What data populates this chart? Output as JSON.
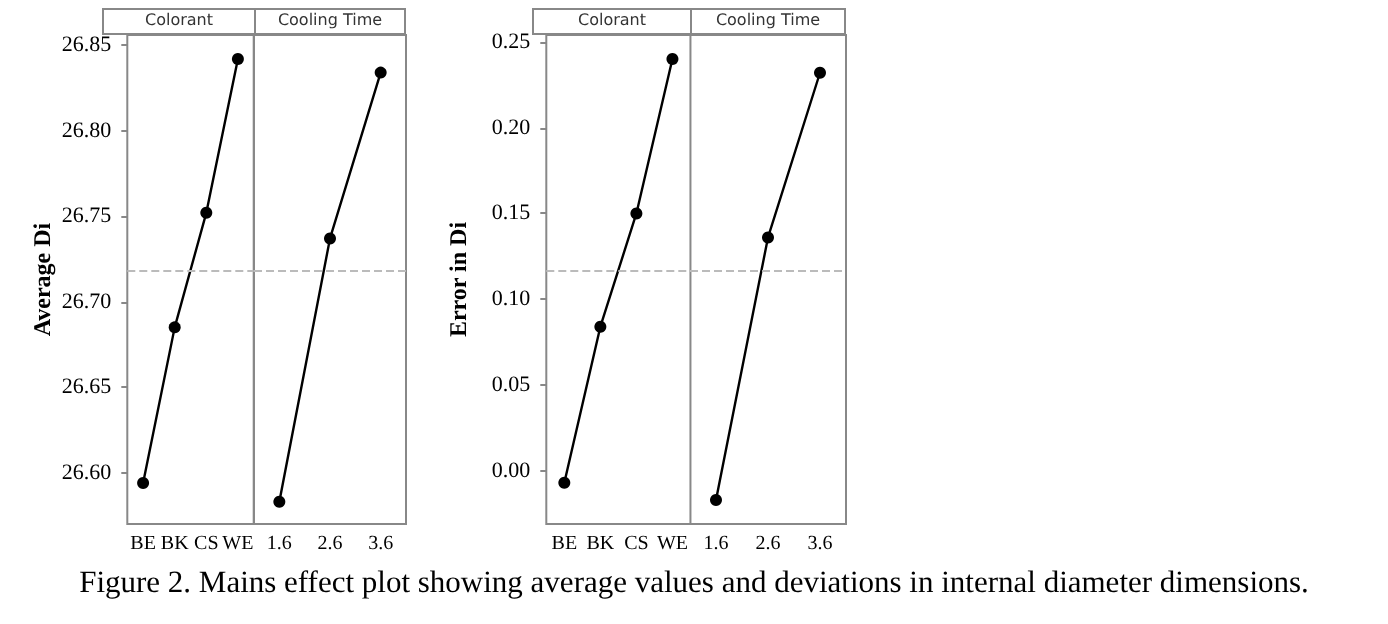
{
  "chart_data": [
    {
      "type": "line",
      "title": "Colorant",
      "ylabel": "Average Di",
      "categories": [
        "BE",
        "BK",
        "CS",
        "WE"
      ],
      "series": [
        {
          "color": "#000000",
          "values": [
            26.594,
            26.685,
            26.752,
            26.842
          ]
        }
      ],
      "ylim": [
        26.57,
        26.856
      ],
      "yticks": [
        {
          "value": 26.6,
          "label": "26.60"
        },
        26.65,
        {
          "value": 26.7,
          "label": "26.70"
        },
        26.75,
        {
          "value": 26.8,
          "label": "26.80"
        },
        26.85
      ],
      "marker": "circle",
      "line_style": "solid",
      "ref_lines": [
        {
          "axis": "y",
          "value": 26.718,
          "color": "#bbbbbb",
          "line_style": "dashed"
        }
      ],
      "annotations": [
        "Figure 2. Mains effect plot showing average values and deviations in internal diameter dimensions."
      ]
    },
    {
      "type": "line",
      "title": "Cooling Time",
      "categories": [
        "1.6",
        "2.6",
        "3.6"
      ],
      "series": [
        {
          "color": "#000000",
          "values": [
            26.583,
            26.737,
            26.834
          ]
        }
      ],
      "ylim": [
        26.57,
        26.856
      ],
      "yticks": [
        26.6,
        26.65,
        26.7,
        26.75,
        26.8,
        26.85
      ],
      "tick_labels": "x",
      "marker": "circle",
      "line_style": "solid",
      "ref_lines": [
        {
          "axis": "y",
          "value": 26.718,
          "color": "#bbbbbb",
          "line_style": "dashed"
        }
      ]
    },
    {
      "type": "line",
      "title": "Colorant",
      "ylabel": "Error in Di",
      "categories": [
        "BE",
        "BK",
        "CS",
        "WE"
      ],
      "series": [
        {
          "color": "#000000",
          "values": [
            -0.007,
            0.084,
            0.15,
            0.24
          ]
        }
      ],
      "ylim": [
        -0.031,
        0.254
      ],
      "yticks": [
        {
          "value": 0,
          "label": "0.00"
        },
        0.05,
        {
          "value": 0.1,
          "label": "0.10"
        },
        0.15,
        {
          "value": 0.2,
          "label": "0.20"
        },
        0.25
      ],
      "marker": "circle",
      "line_style": "solid",
      "ref_lines": [
        {
          "axis": "y",
          "value": 0.117,
          "color": "#bbbbbb",
          "line_style": "dashed"
        }
      ]
    },
    {
      "type": "line",
      "title": "Cooling Time",
      "categories": [
        "1.6",
        "2.6",
        "3.6"
      ],
      "series": [
        {
          "color": "#000000",
          "values": [
            -0.017,
            0.136,
            0.232
          ]
        }
      ],
      "ylim": [
        -0.031,
        0.254
      ],
      "yticks": [
        0,
        0.05,
        0.1,
        0.15,
        0.2,
        0.25
      ],
      "tick_labels": "x",
      "marker": "circle",
      "line_style": "solid",
      "ref_lines": [
        {
          "axis": "y",
          "value": 0.117,
          "color": "#bbbbbb",
          "line_style": "dashed"
        }
      ]
    }
  ]
}
